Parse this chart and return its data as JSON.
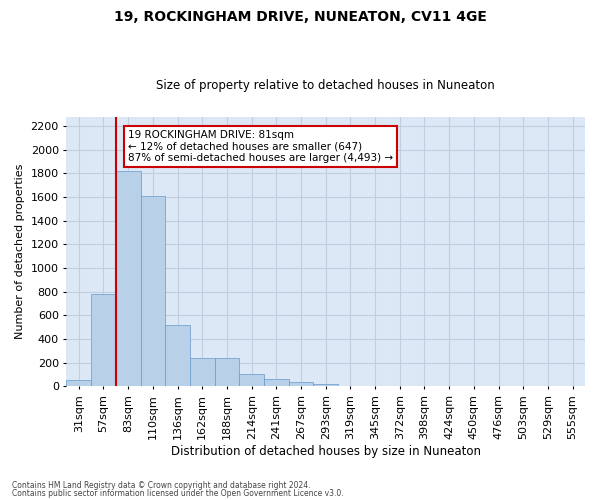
{
  "title": "19, ROCKINGHAM DRIVE, NUNEATON, CV11 4GE",
  "subtitle": "Size of property relative to detached houses in Nuneaton",
  "xlabel": "Distribution of detached houses by size in Nuneaton",
  "ylabel": "Number of detached properties",
  "categories": [
    "31sqm",
    "57sqm",
    "83sqm",
    "110sqm",
    "136sqm",
    "162sqm",
    "188sqm",
    "214sqm",
    "241sqm",
    "267sqm",
    "293sqm",
    "319sqm",
    "345sqm",
    "372sqm",
    "398sqm",
    "424sqm",
    "450sqm",
    "476sqm",
    "503sqm",
    "529sqm",
    "555sqm"
  ],
  "values": [
    55,
    780,
    1820,
    1610,
    520,
    240,
    240,
    105,
    58,
    38,
    20,
    0,
    0,
    0,
    0,
    0,
    0,
    0,
    0,
    0,
    0
  ],
  "bar_color": "#b8d0e8",
  "bar_edge_color": "#6699cc",
  "vline_color": "#cc0000",
  "annotation_text": "19 ROCKINGHAM DRIVE: 81sqm\n← 12% of detached houses are smaller (647)\n87% of semi-detached houses are larger (4,493) →",
  "annotation_box_color": "#ffffff",
  "annotation_box_edge_color": "#cc0000",
  "ylim": [
    0,
    2280
  ],
  "yticks": [
    0,
    200,
    400,
    600,
    800,
    1000,
    1200,
    1400,
    1600,
    1800,
    2000,
    2200
  ],
  "grid_color": "#c0cfe0",
  "background_color": "#dce8f5",
  "footer1": "Contains HM Land Registry data © Crown copyright and database right 2024.",
  "footer2": "Contains public sector information licensed under the Open Government Licence v3.0."
}
